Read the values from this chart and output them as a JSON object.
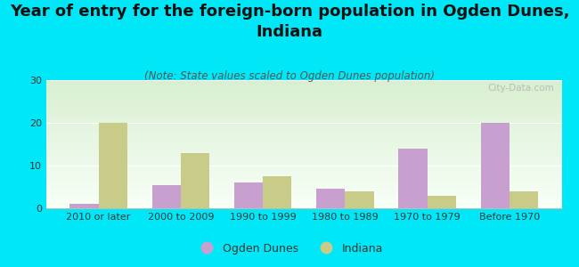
{
  "title": "Year of entry for the foreign-born population in Ogden Dunes,\nIndiana",
  "subtitle": "(Note: State values scaled to Ogden Dunes population)",
  "categories": [
    "2010 or later",
    "2000 to 2009",
    "1990 to 1999",
    "1980 to 1989",
    "1970 to 1979",
    "Before 1970"
  ],
  "ogden_dunes": [
    1,
    5.5,
    6,
    4.5,
    14,
    20
  ],
  "indiana": [
    20,
    13,
    7.5,
    4,
    3,
    4
  ],
  "ogden_color": "#c8a0d0",
  "indiana_color": "#c8cc88",
  "background_color": "#00e8f8",
  "plot_bg_top": "#d8efd0",
  "plot_bg_bottom": "#f8fff8",
  "ylim": [
    0,
    30
  ],
  "yticks": [
    0,
    10,
    20,
    30
  ],
  "bar_width": 0.35,
  "legend_labels": [
    "Ogden Dunes",
    "Indiana"
  ],
  "watermark": "City-Data.com",
  "title_fontsize": 13,
  "subtitle_fontsize": 8.5,
  "tick_fontsize": 8,
  "legend_fontsize": 9
}
